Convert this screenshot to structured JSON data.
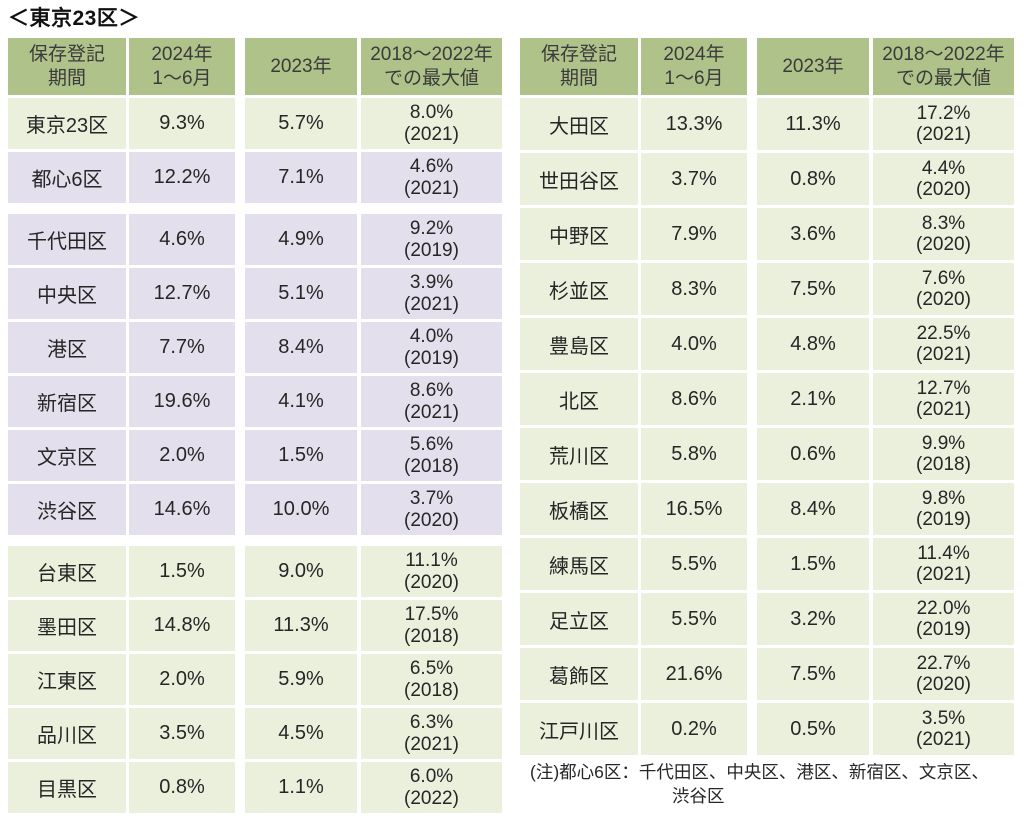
{
  "title": "＜東京23区＞",
  "colors": {
    "header_green": "#aec289",
    "row_green": "#ebf0dd",
    "row_purple": "#e4dfec"
  },
  "headers": [
    "保存登記\n期間",
    "2024年\n1～6月",
    "2023年",
    "2018～2022年\nでの最大値"
  ],
  "tables": [
    {
      "id": "left",
      "rows": [
        {
          "label": "東京23区",
          "v2024": "9.3%",
          "v2023": "5.7%",
          "max": "8.0%",
          "max_year": "(2021)",
          "tone": "green",
          "group_start": false
        },
        {
          "label": "都心6区",
          "v2024": "12.2%",
          "v2023": "7.1%",
          "max": "4.6%",
          "max_year": "(2021)",
          "tone": "purple",
          "group_start": false
        },
        {
          "label": "千代田区",
          "v2024": "4.6%",
          "v2023": "4.9%",
          "max": "9.2%",
          "max_year": "(2019)",
          "tone": "purple",
          "group_start": true
        },
        {
          "label": "中央区",
          "v2024": "12.7%",
          "v2023": "5.1%",
          "max": "3.9%",
          "max_year": "(2021)",
          "tone": "purple",
          "group_start": false
        },
        {
          "label": "港区",
          "v2024": "7.7%",
          "v2023": "8.4%",
          "max": "4.0%",
          "max_year": "(2019)",
          "tone": "purple",
          "group_start": false
        },
        {
          "label": "新宿区",
          "v2024": "19.6%",
          "v2023": "4.1%",
          "max": "8.6%",
          "max_year": "(2021)",
          "tone": "purple",
          "group_start": false
        },
        {
          "label": "文京区",
          "v2024": "2.0%",
          "v2023": "1.5%",
          "max": "5.6%",
          "max_year": "(2018)",
          "tone": "purple",
          "group_start": false
        },
        {
          "label": "渋谷区",
          "v2024": "14.6%",
          "v2023": "10.0%",
          "max": "3.7%",
          "max_year": "(2020)",
          "tone": "purple",
          "group_start": false
        },
        {
          "label": "台東区",
          "v2024": "1.5%",
          "v2023": "9.0%",
          "max": "11.1%",
          "max_year": "(2020)",
          "tone": "green",
          "group_start": true
        },
        {
          "label": "墨田区",
          "v2024": "14.8%",
          "v2023": "11.3%",
          "max": "17.5%",
          "max_year": "(2018)",
          "tone": "green",
          "group_start": false
        },
        {
          "label": "江東区",
          "v2024": "2.0%",
          "v2023": "5.9%",
          "max": "6.5%",
          "max_year": "(2018)",
          "tone": "green",
          "group_start": false
        },
        {
          "label": "品川区",
          "v2024": "3.5%",
          "v2023": "4.5%",
          "max": "6.3%",
          "max_year": "(2021)",
          "tone": "green",
          "group_start": false
        },
        {
          "label": "目黒区",
          "v2024": "0.8%",
          "v2023": "1.1%",
          "max": "6.0%",
          "max_year": "(2022)",
          "tone": "green",
          "group_start": false
        }
      ]
    },
    {
      "id": "right",
      "rows": [
        {
          "label": "大田区",
          "v2024": "13.3%",
          "v2023": "11.3%",
          "max": "17.2%",
          "max_year": "(2021)",
          "tone": "green",
          "group_start": false
        },
        {
          "label": "世田谷区",
          "v2024": "3.7%",
          "v2023": "0.8%",
          "max": "4.4%",
          "max_year": "(2020)",
          "tone": "green",
          "group_start": false
        },
        {
          "label": "中野区",
          "v2024": "7.9%",
          "v2023": "3.6%",
          "max": "8.3%",
          "max_year": "(2020)",
          "tone": "green",
          "group_start": false
        },
        {
          "label": "杉並区",
          "v2024": "8.3%",
          "v2023": "7.5%",
          "max": "7.6%",
          "max_year": "(2020)",
          "tone": "green",
          "group_start": false
        },
        {
          "label": "豊島区",
          "v2024": "4.0%",
          "v2023": "4.8%",
          "max": "22.5%",
          "max_year": "(2021)",
          "tone": "green",
          "group_start": false
        },
        {
          "label": "北区",
          "v2024": "8.6%",
          "v2023": "2.1%",
          "max": "12.7%",
          "max_year": "(2021)",
          "tone": "green",
          "group_start": false
        },
        {
          "label": "荒川区",
          "v2024": "5.8%",
          "v2023": "0.6%",
          "max": "9.9%",
          "max_year": "(2018)",
          "tone": "green",
          "group_start": false
        },
        {
          "label": "板橋区",
          "v2024": "16.5%",
          "v2023": "8.4%",
          "max": "9.8%",
          "max_year": "(2019)",
          "tone": "green",
          "group_start": false
        },
        {
          "label": "練馬区",
          "v2024": "5.5%",
          "v2023": "1.5%",
          "max": "11.4%",
          "max_year": "(2021)",
          "tone": "green",
          "group_start": false
        },
        {
          "label": "足立区",
          "v2024": "5.5%",
          "v2023": "3.2%",
          "max": "22.0%",
          "max_year": "(2019)",
          "tone": "green",
          "group_start": false
        },
        {
          "label": "葛飾区",
          "v2024": "21.6%",
          "v2023": "7.5%",
          "max": "22.7%",
          "max_year": "(2020)",
          "tone": "green",
          "group_start": false
        },
        {
          "label": "江戸川区",
          "v2024": "0.2%",
          "v2023": "0.5%",
          "max": "3.5%",
          "max_year": "(2021)",
          "tone": "green",
          "group_start": false
        }
      ]
    }
  ],
  "note": {
    "line1": "(注)都心6区：千代田区、中央区、港区、新宿区、文京区、",
    "line2": "渋谷区"
  }
}
